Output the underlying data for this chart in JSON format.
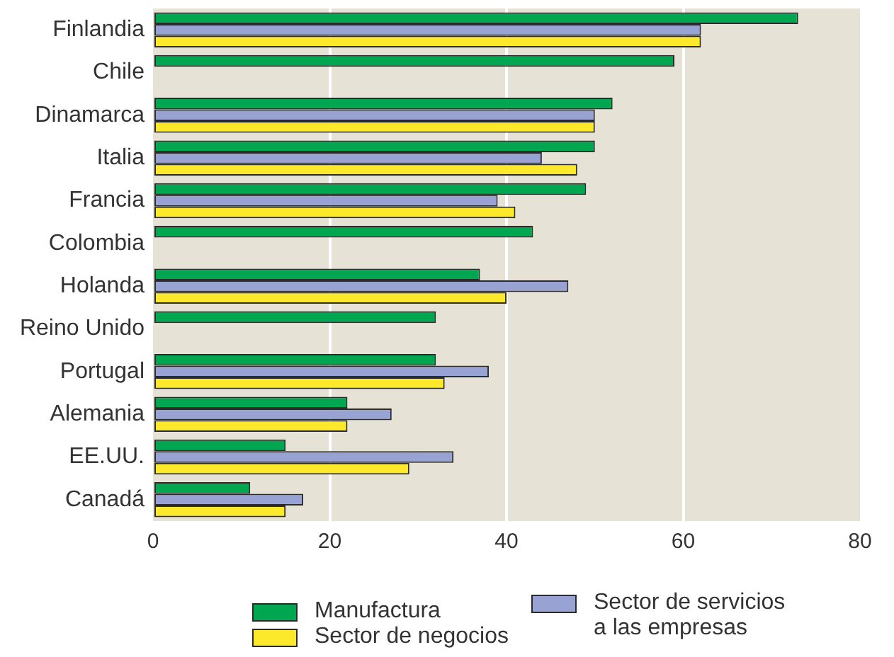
{
  "chart_data": {
    "type": "bar",
    "orientation": "horizontal",
    "categories": [
      "Finlandia",
      "Chile",
      "Dinamarca",
      "Italia",
      "Francia",
      "Colombia",
      "Holanda",
      "Reino Unido",
      "Portugal",
      "Alemania",
      "EE.UU.",
      "Canadá"
    ],
    "series": [
      {
        "name": "Manufactura",
        "color": "#00a650",
        "values": [
          73,
          59,
          52,
          50,
          49,
          43,
          37,
          32,
          32,
          22,
          15,
          11
        ]
      },
      {
        "name": "Sector de servicios a las empresas",
        "color": "#99a3d3",
        "values": [
          62,
          null,
          50,
          44,
          39,
          null,
          47,
          null,
          38,
          27,
          34,
          17
        ]
      },
      {
        "name": "Sector de negocios",
        "color": "#fde92b",
        "values": [
          62,
          null,
          50,
          48,
          41,
          null,
          40,
          null,
          33,
          22,
          29,
          15
        ]
      }
    ],
    "xlim": [
      0,
      80
    ],
    "xticks": [
      0,
      20,
      40,
      60,
      80
    ],
    "grid": "x",
    "legend": "bottom"
  }
}
